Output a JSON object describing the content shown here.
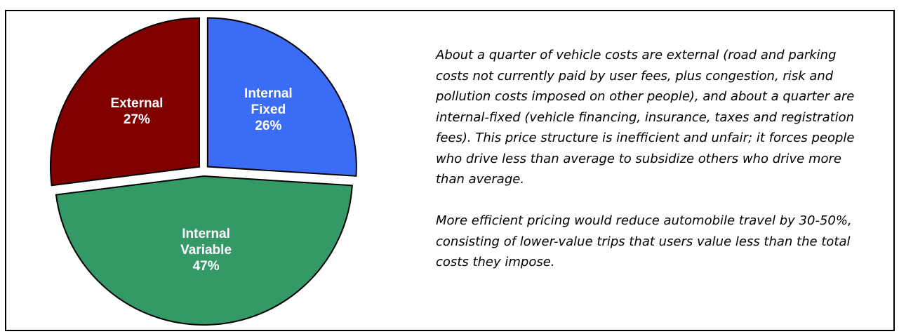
{
  "chart_data": {
    "type": "pie",
    "categories": [
      "Internal Fixed",
      "Internal Variable",
      "External"
    ],
    "values": [
      26,
      47,
      27
    ],
    "value_labels": [
      "26%",
      "47%",
      "27%"
    ],
    "colors": [
      "#3b6cf6",
      "#339966",
      "#800000"
    ]
  },
  "text": {
    "paragraphs": [
      "About a quarter of vehicle costs are external (road and parking costs not currently paid by user fees, plus congestion, risk and pollution costs imposed on other people), and about a quarter are internal-fixed (vehicle financing, insurance, taxes and registration fees). This price structure is inefficient and unfair; it forces people who drive less than average to subsidize others who drive more than average.",
      "More efficient pricing would reduce automobile travel by 30-50%, consisting of lower-value trips that users value less than the total costs they impose."
    ]
  }
}
